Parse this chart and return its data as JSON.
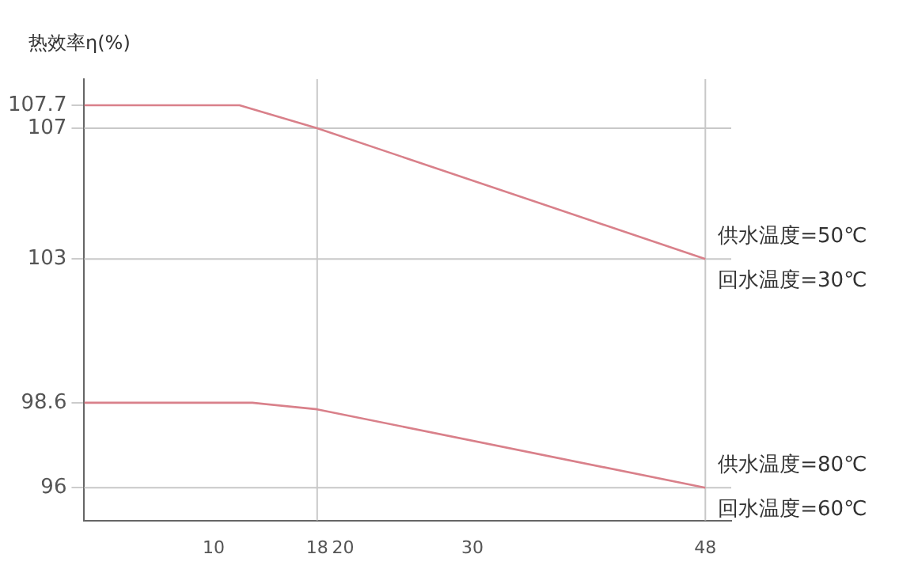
{
  "chart_data": {
    "type": "line",
    "ylabel": "热效率η(%)",
    "xlim": [
      0,
      50
    ],
    "xticks": [
      10,
      18,
      20,
      30,
      48
    ],
    "ylim": [
      95,
      108.5
    ],
    "yticks": [
      96,
      98.6,
      103,
      107,
      107.7
    ],
    "grid": false,
    "legend": false,
    "marker": "none",
    "line_style": "solid",
    "series": [
      {
        "name": "供水温度=50℃\n回水温度=30℃",
        "color": "#d9808a",
        "x": [
          0,
          12,
          18,
          48
        ],
        "values": [
          107.7,
          107.7,
          107,
          103
        ]
      },
      {
        "name": "供水温度=80℃\n回水温度=60℃",
        "color": "#d9808a",
        "x": [
          0,
          13,
          18,
          48
        ],
        "values": [
          98.6,
          98.6,
          98.4,
          96
        ]
      }
    ],
    "ref_lines": [
      {
        "axis": "y",
        "value": 107,
        "color": "#c8c8c8"
      },
      {
        "axis": "y",
        "value": 103,
        "color": "#c8c8c8"
      },
      {
        "axis": "y",
        "value": 96,
        "color": "#c8c8c8"
      },
      {
        "axis": "x",
        "value": 18,
        "color": "#c8c8c8"
      },
      {
        "axis": "x",
        "value": 48,
        "color": "#c8c8c8"
      }
    ]
  }
}
